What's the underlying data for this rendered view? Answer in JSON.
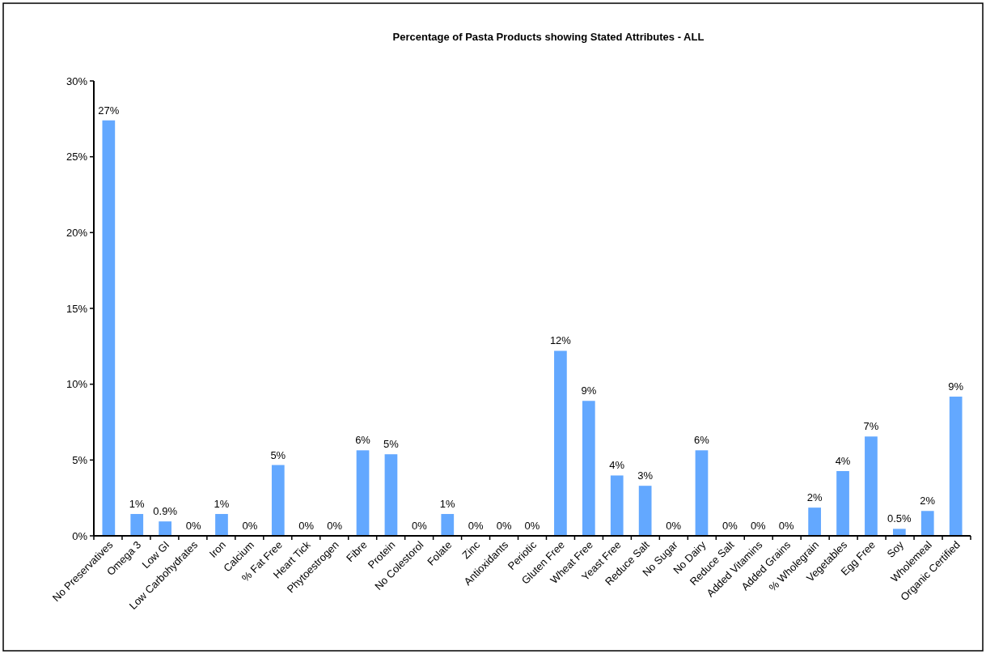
{
  "chart_data": {
    "type": "bar",
    "title": "Percentage of Pasta Products showing Stated Attributes - ALL",
    "categories": [
      "No Preservatives",
      "Omega 3",
      "Low GI",
      "Low Carbohydrates",
      "Iron",
      "Calcium",
      "% Fat Free",
      "Heart Tick",
      "Phytoestrogen",
      "Fibre",
      "Protein",
      "No Colestorol",
      "Folate",
      "Zinc",
      "Antioxidants",
      "Periotic",
      "Gluten Free",
      "Wheat Free",
      "Yeast Free",
      "Reduce Salt",
      "No Sugar",
      "No Dairy",
      "Reduce Salt",
      "Added Vitamins",
      "Added Grains",
      "% Wholegrain",
      "Vegetables",
      "Egg Free",
      "Soy",
      "Wholemeal",
      "Organic Certified"
    ],
    "values": [
      27.4,
      1.44,
      0.95,
      0,
      1.44,
      0,
      4.67,
      0,
      0,
      5.64,
      5.38,
      0,
      1.44,
      0,
      0,
      0,
      12.2,
      8.9,
      3.98,
      3.3,
      0,
      5.64,
      0,
      0,
      0,
      1.86,
      4.27,
      6.55,
      0.46,
      1.64,
      9.18
    ],
    "value_labels": [
      "27%",
      "1%",
      "0.9%",
      "0%",
      "1%",
      "0%",
      "5%",
      "0%",
      "0%",
      "6%",
      "5%",
      "0%",
      "1%",
      "0%",
      "0%",
      "0%",
      "12%",
      "9%",
      "4%",
      "3%",
      "0%",
      "6%",
      "0%",
      "0%",
      "0%",
      "2%",
      "4%",
      "7%",
      "0.5%",
      "2%",
      "9%"
    ],
    "color": "#63a8ff",
    "ylim": [
      0,
      30
    ],
    "yticks": [
      {
        "value": 0,
        "label": "0%"
      },
      {
        "value": 5,
        "label": "5%"
      },
      {
        "value": 10,
        "label": "10%"
      },
      {
        "value": 15,
        "label": "15%"
      },
      {
        "value": 20,
        "label": "20%"
      },
      {
        "value": 25,
        "label": "25%"
      },
      {
        "value": 30,
        "label": "30%"
      }
    ],
    "grid": false
  }
}
